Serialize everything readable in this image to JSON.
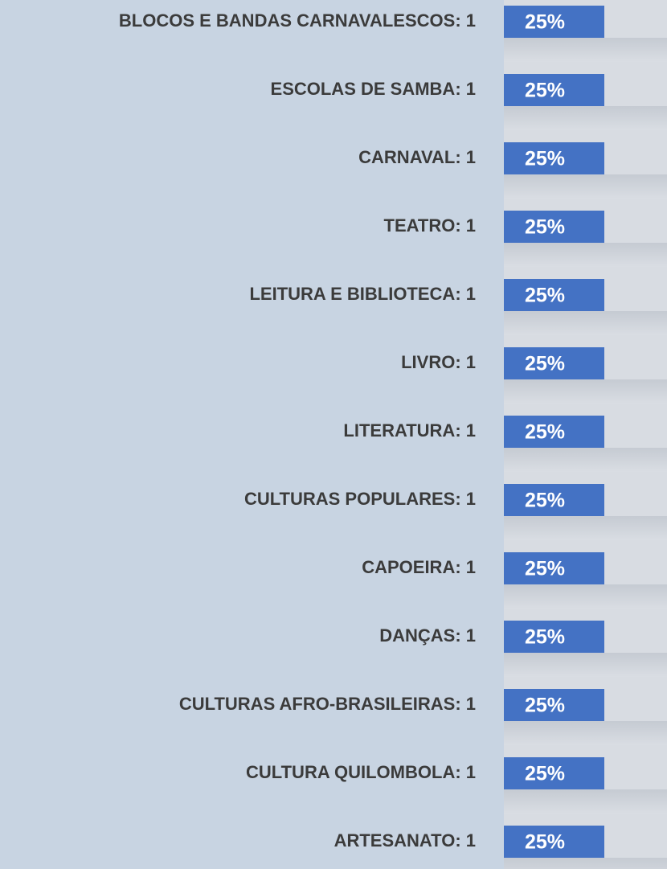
{
  "chart_data": {
    "type": "bar",
    "orientation": "horizontal",
    "categories": [
      "BLOCOS E BANDAS CARNAVALESCOS: 1",
      "ESCOLAS DE SAMBA: 1",
      "CARNAVAL: 1",
      "TEATRO: 1",
      "LEITURA E BIBLIOTECA: 1",
      "LIVRO: 1",
      "LITERATURA: 1",
      "CULTURAS POPULARES: 1",
      "CAPOEIRA: 1",
      "DANÇAS: 1",
      "CULTURAS AFRO-BRASILEIRAS: 1",
      "CULTURA QUILOMBOLA: 1",
      "ARTESANATO: 1"
    ],
    "values": [
      25,
      25,
      25,
      25,
      25,
      25,
      25,
      25,
      25,
      25,
      25,
      25,
      25
    ],
    "value_labels": [
      "25%",
      "25%",
      "25%",
      "25%",
      "25%",
      "25%",
      "25%",
      "25%",
      "25%",
      "25%",
      "25%",
      "25%",
      "25%"
    ],
    "color": "#4472c4"
  }
}
